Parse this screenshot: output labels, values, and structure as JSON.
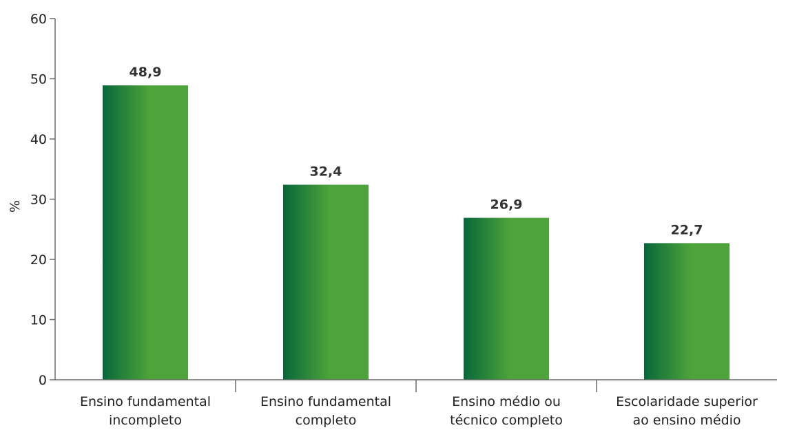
{
  "chart_data": {
    "type": "bar",
    "categories": [
      [
        "Ensino fundamental",
        "incompleto"
      ],
      [
        "Ensino fundamental",
        "completo"
      ],
      [
        "Ensino médio ou",
        "técnico completo"
      ],
      [
        "Escolaridade superior",
        "ao ensino médio"
      ]
    ],
    "values": [
      48.9,
      32.4,
      26.9,
      22.7
    ],
    "value_labels": [
      "48,9",
      "32,4",
      "26,9",
      "22,7"
    ],
    "ylabel": "%",
    "ylim": [
      0,
      60
    ],
    "yticks": [
      0,
      10,
      20,
      30,
      40,
      50,
      60
    ],
    "grid": false,
    "colors": {
      "bar_dark": "#07673a",
      "bar_light": "#4ea43a"
    }
  }
}
